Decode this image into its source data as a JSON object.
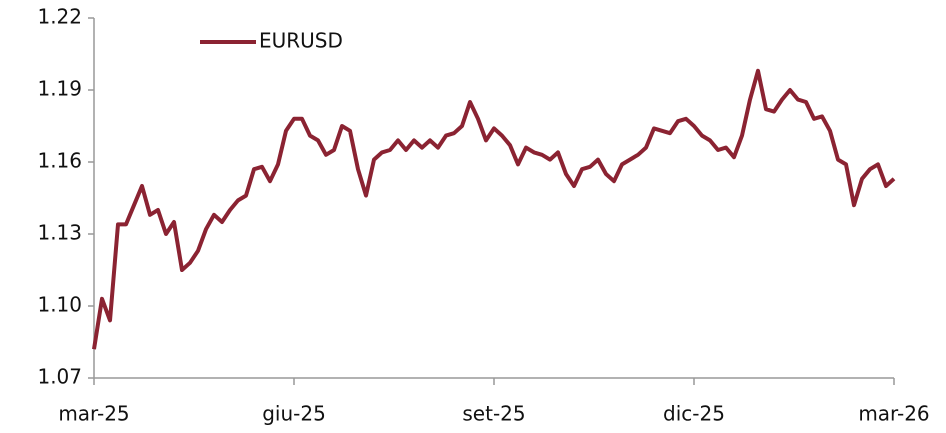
{
  "chart_data": {
    "type": "line",
    "categories": [
      "mar-25",
      null,
      null,
      null,
      null,
      null,
      null,
      null,
      null,
      null,
      null,
      null,
      null,
      null,
      null,
      null,
      null,
      null,
      null,
      null,
      null,
      null,
      null,
      null,
      null,
      "giu-25",
      null,
      null,
      null,
      null,
      null,
      null,
      null,
      null,
      null,
      null,
      null,
      null,
      null,
      null,
      null,
      null,
      null,
      null,
      null,
      null,
      null,
      null,
      null,
      null,
      "set-25",
      null,
      null,
      null,
      null,
      null,
      null,
      null,
      null,
      null,
      null,
      null,
      null,
      null,
      null,
      null,
      null,
      null,
      null,
      null,
      null,
      null,
      null,
      null,
      null,
      "dic-25",
      null,
      null,
      null,
      null,
      null,
      null,
      null,
      null,
      null,
      null,
      null,
      null,
      null,
      null,
      null,
      null,
      null,
      null,
      null,
      null,
      null,
      null,
      null,
      null,
      "mar-26"
    ],
    "series": [
      {
        "name": "EURUSD",
        "color": "#8b2332",
        "values": [
          1.082,
          1.103,
          1.094,
          1.134,
          1.134,
          1.142,
          1.15,
          1.138,
          1.14,
          1.13,
          1.135,
          1.115,
          1.118,
          1.123,
          1.132,
          1.138,
          1.135,
          1.14,
          1.144,
          1.146,
          1.157,
          1.158,
          1.152,
          1.159,
          1.173,
          1.178,
          1.178,
          1.171,
          1.169,
          1.163,
          1.165,
          1.175,
          1.173,
          1.157,
          1.146,
          1.161,
          1.164,
          1.165,
          1.169,
          1.165,
          1.169,
          1.166,
          1.169,
          1.166,
          1.171,
          1.172,
          1.175,
          1.185,
          1.178,
          1.169,
          1.174,
          1.171,
          1.167,
          1.159,
          1.166,
          1.164,
          1.163,
          1.161,
          1.164,
          1.155,
          1.15,
          1.157,
          1.158,
          1.161,
          1.155,
          1.152,
          1.159,
          1.161,
          1.163,
          1.166,
          1.174,
          1.173,
          1.172,
          1.177,
          1.178,
          1.175,
          1.171,
          1.169,
          1.165,
          1.166,
          1.162,
          1.171,
          1.186,
          1.198,
          1.182,
          1.181,
          1.186,
          1.19,
          1.186,
          1.185,
          1.178,
          1.179,
          1.173,
          1.161,
          1.159,
          1.142,
          1.153,
          1.157,
          1.159,
          1.15,
          1.153
        ]
      }
    ],
    "ylim": [
      1.07,
      1.22
    ],
    "yticks": [
      1.07,
      {
        "value": 1.1,
        "label": "1.10"
      },
      1.13,
      1.16,
      1.19,
      1.22
    ],
    "grid": false,
    "legend": "top-left"
  }
}
